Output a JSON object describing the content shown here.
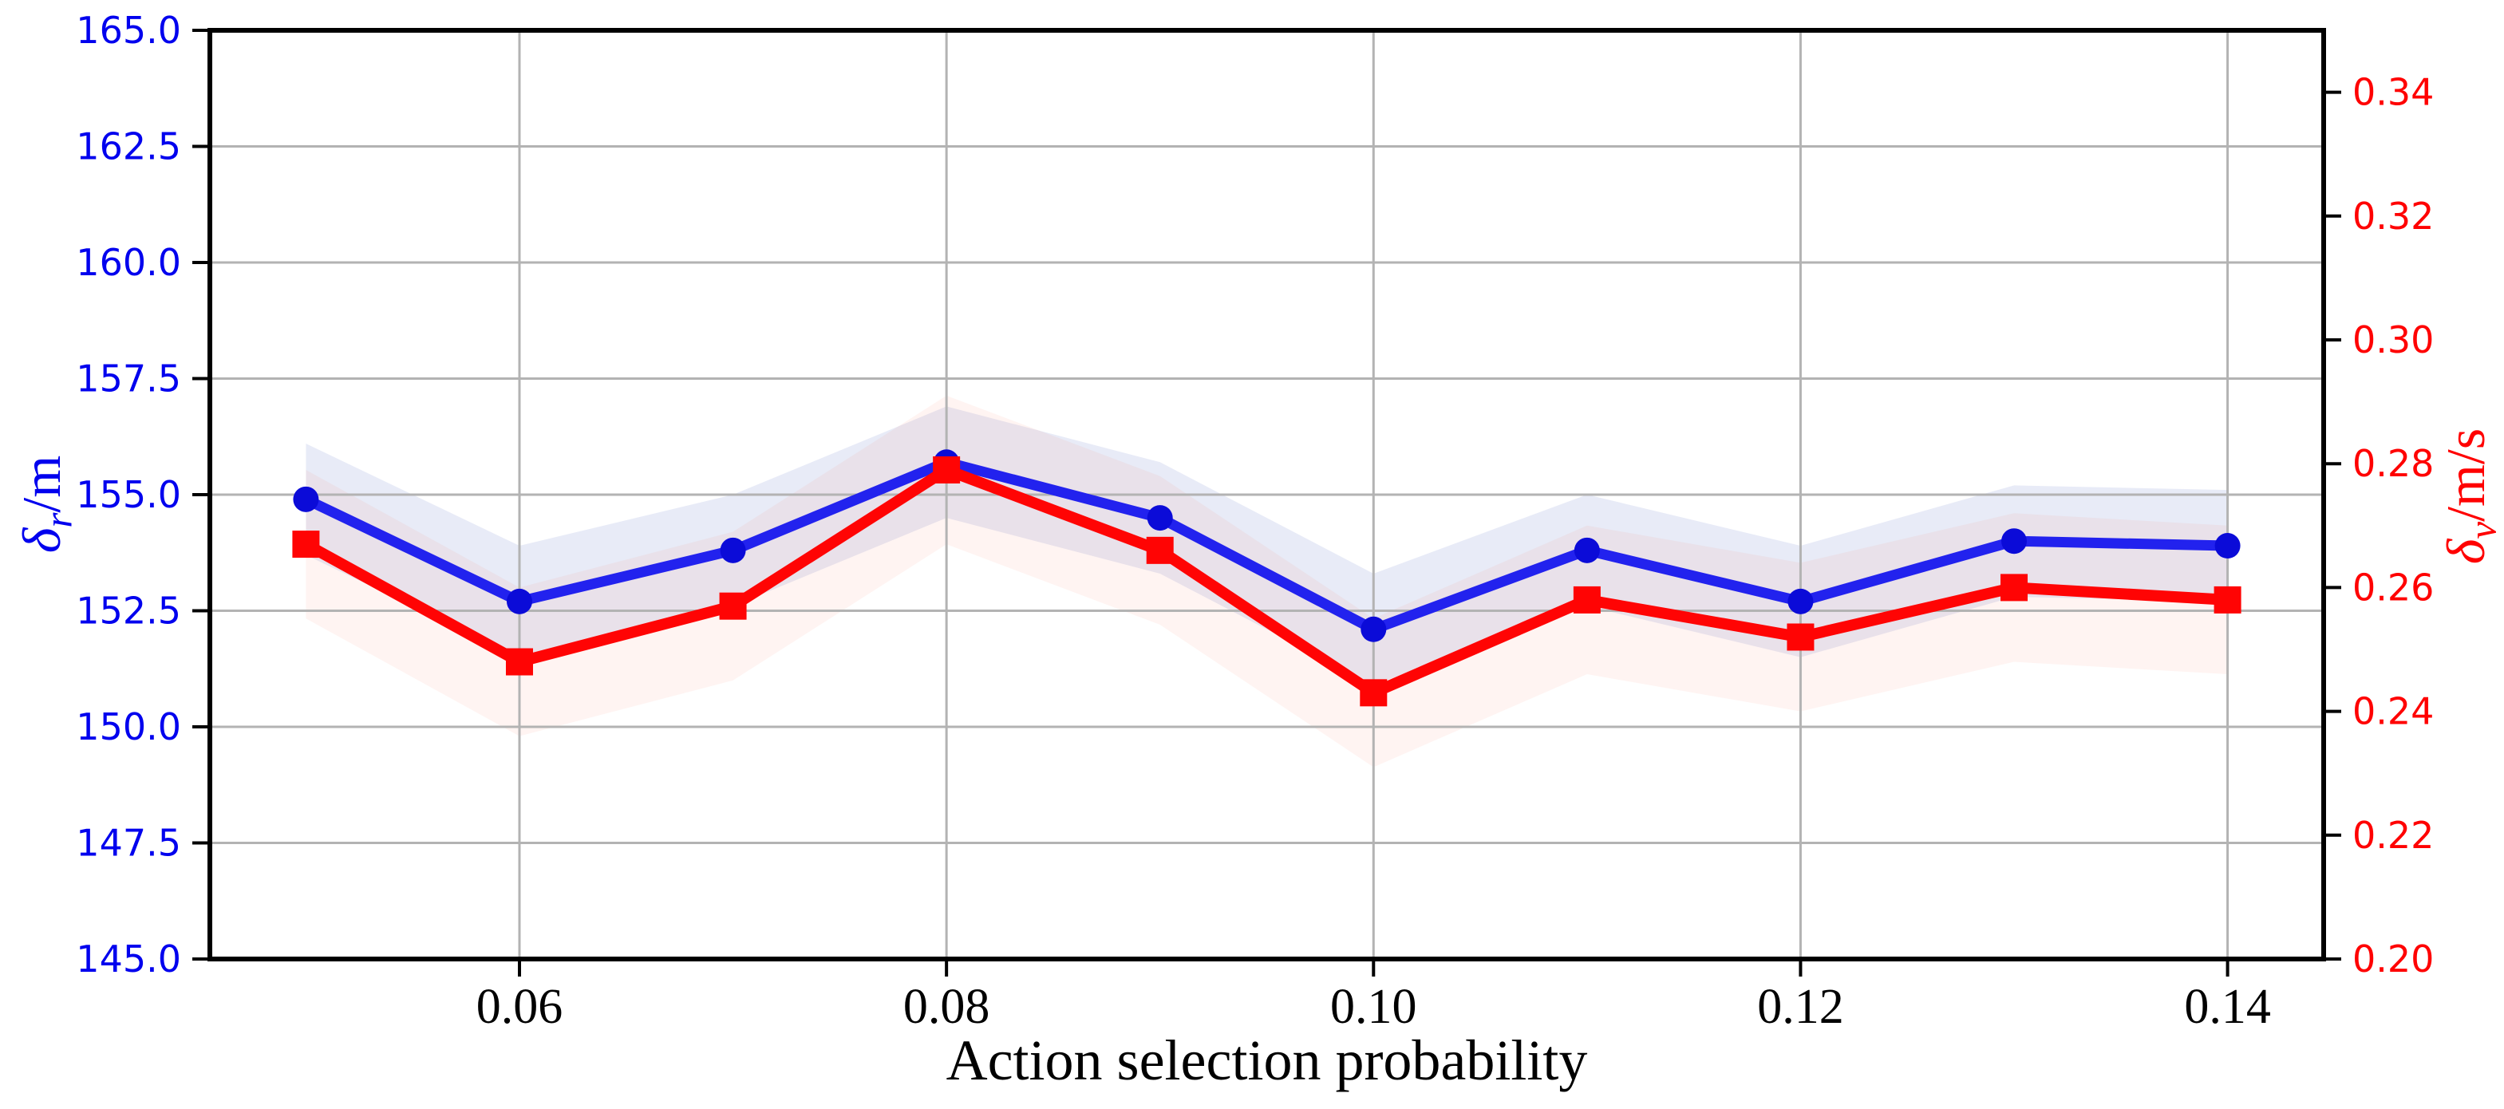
{
  "chart_data": {
    "type": "line",
    "title": "",
    "xlabel": "Action selection probability",
    "x": [
      0.05,
      0.06,
      0.07,
      0.08,
      0.09,
      0.1,
      0.11,
      0.12,
      0.13,
      0.14
    ],
    "xlim": [
      0.0455,
      0.1445
    ],
    "ylim_left": [
      145.0,
      165.0
    ],
    "ylim_right": [
      0.2,
      0.35
    ],
    "grid": true,
    "xtick_labels": [
      "0.06",
      "0.08",
      "0.10",
      "0.12",
      "0.14"
    ],
    "ytick_labels_left": [
      "165.0",
      "162.5",
      "160.0",
      "157.5",
      "155.0",
      "152.5",
      "150.0",
      "147.5",
      "145.0"
    ],
    "ytick_labels_right": [
      "0.34",
      "0.32",
      "0.30",
      "0.28",
      "0.26",
      "0.24",
      "0.22",
      "0.20"
    ],
    "left_axis_label": {
      "symbol": "δ",
      "subscript": "r",
      "unit": "/m",
      "color": "#0000ee"
    },
    "right_axis_label": {
      "symbol": "δ",
      "subscript": "v",
      "unit": "/m/s",
      "color": "#ff0000"
    },
    "series": [
      {
        "name": "delta_r",
        "axis": "left",
        "marker": "circle",
        "line_color": "#2222ee",
        "marker_color": "#0b0bd8",
        "line_width": 13,
        "marker_size": 16,
        "band_halfwidth": 1.2,
        "band_color": "rgba(95, 115, 195, 0.14)",
        "values": [
          154.9,
          152.7,
          153.8,
          155.7,
          154.5,
          152.1,
          153.8,
          152.7,
          154.0,
          153.9
        ]
      },
      {
        "name": "delta_v",
        "axis": "right",
        "marker": "square",
        "line_color": "#ff0404",
        "marker_color": "#ff0404",
        "line_width": 14,
        "marker_size": 34,
        "band_halfwidth": 0.012,
        "band_color": "rgba(255, 95, 75, 0.07)",
        "values": [
          0.267,
          0.248,
          0.257,
          0.279,
          0.266,
          0.243,
          0.258,
          0.252,
          0.26,
          0.258
        ]
      }
    ],
    "colors": {
      "background": "#ffffff",
      "grid": "#b3b3b3",
      "spine": "#000000",
      "tick_mark": "#000000",
      "tick_label_left": "#0000ee",
      "tick_label_right": "#ff0000",
      "tick_label_bottom": "#000000"
    }
  }
}
